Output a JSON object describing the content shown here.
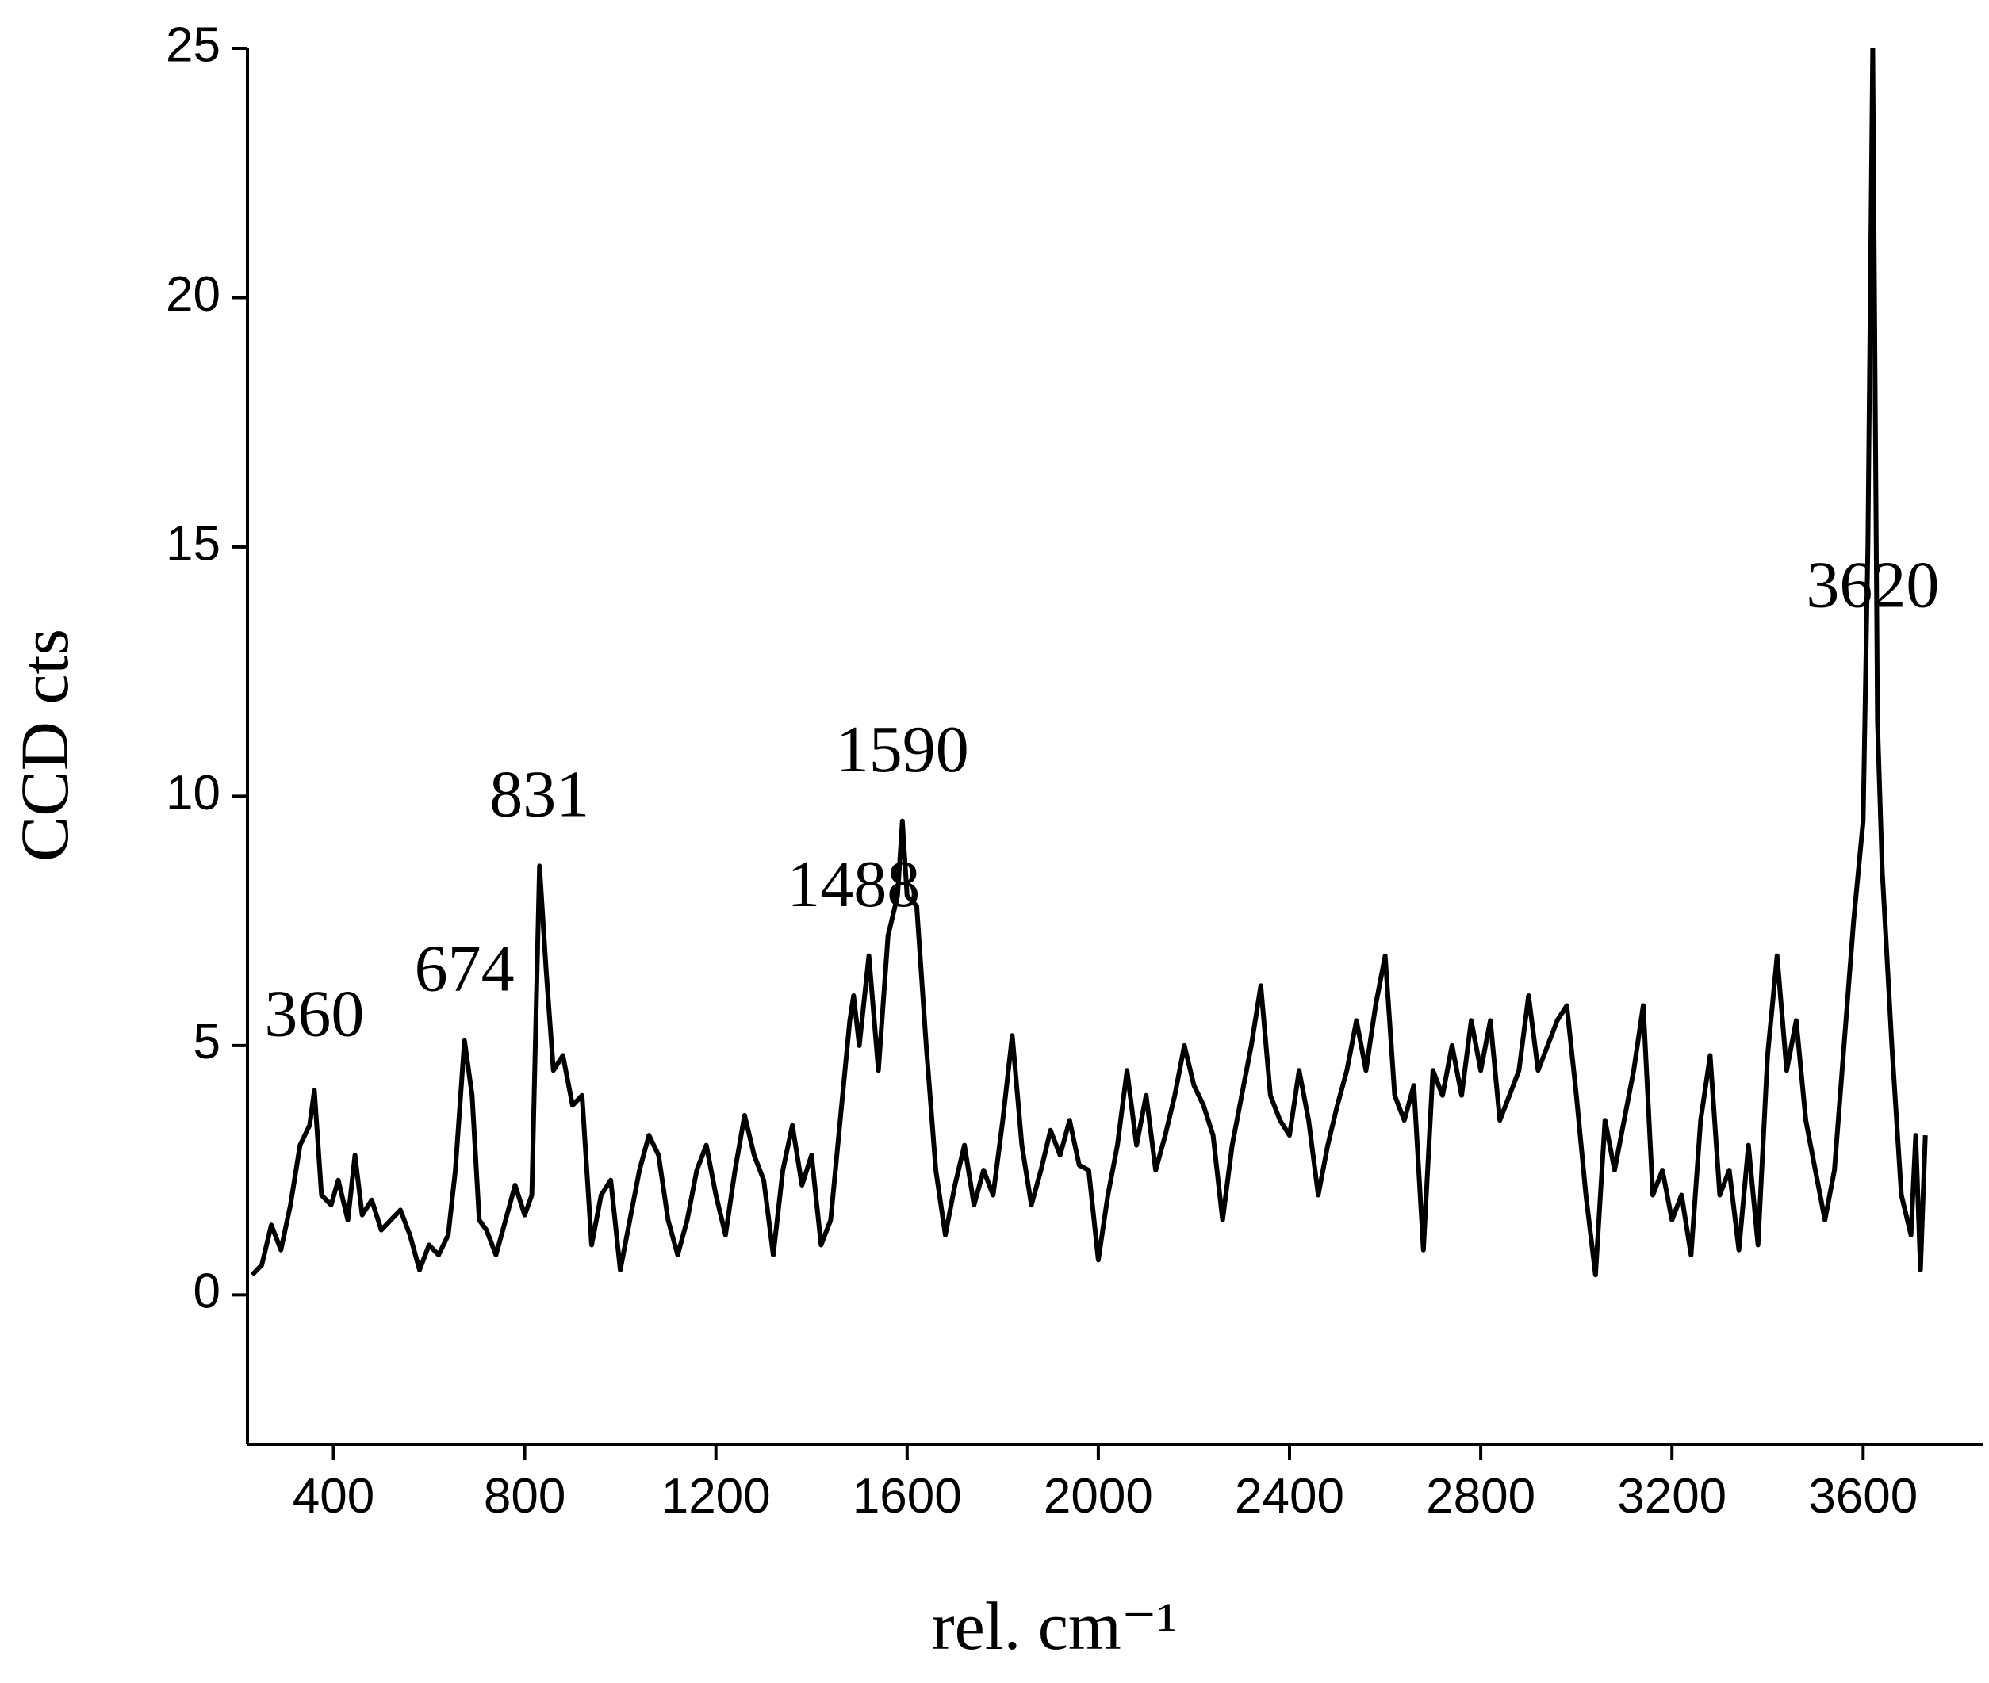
{
  "chart_data": {
    "type": "line",
    "xlabel": "rel. cm⁻¹",
    "ylabel": "CCD cts",
    "xlim": [
      220,
      3850
    ],
    "ylim": [
      -3,
      25
    ],
    "xticks": [
      400,
      800,
      1200,
      1600,
      2000,
      2400,
      2800,
      3200,
      3600
    ],
    "yticks": [
      0,
      5,
      10,
      15,
      20,
      25
    ],
    "color": "#000000",
    "x": [
      230,
      250,
      270,
      290,
      310,
      330,
      350,
      360,
      375,
      395,
      410,
      430,
      445,
      460,
      480,
      500,
      520,
      540,
      560,
      580,
      600,
      620,
      640,
      655,
      674,
      690,
      705,
      720,
      740,
      760,
      780,
      800,
      815,
      831,
      845,
      860,
      880,
      900,
      920,
      940,
      960,
      980,
      1000,
      1020,
      1040,
      1060,
      1080,
      1100,
      1120,
      1140,
      1160,
      1180,
      1200,
      1220,
      1240,
      1260,
      1280,
      1300,
      1320,
      1340,
      1360,
      1380,
      1400,
      1420,
      1440,
      1460,
      1480,
      1488,
      1500,
      1520,
      1540,
      1560,
      1580,
      1590,
      1600,
      1620,
      1640,
      1660,
      1680,
      1700,
      1720,
      1740,
      1760,
      1780,
      1800,
      1820,
      1840,
      1860,
      1880,
      1900,
      1920,
      1940,
      1960,
      1980,
      2000,
      2020,
      2040,
      2060,
      2080,
      2100,
      2120,
      2140,
      2160,
      2180,
      2200,
      2220,
      2240,
      2260,
      2280,
      2300,
      2320,
      2340,
      2360,
      2380,
      2400,
      2420,
      2440,
      2460,
      2480,
      2500,
      2520,
      2540,
      2560,
      2580,
      2600,
      2620,
      2640,
      2660,
      2680,
      2700,
      2720,
      2740,
      2760,
      2780,
      2800,
      2820,
      2840,
      2860,
      2880,
      2900,
      2920,
      2940,
      2960,
      2980,
      3000,
      3020,
      3040,
      3060,
      3080,
      3100,
      3120,
      3140,
      3160,
      3180,
      3200,
      3220,
      3240,
      3260,
      3280,
      3300,
      3320,
      3340,
      3360,
      3380,
      3400,
      3420,
      3440,
      3460,
      3480,
      3500,
      3520,
      3540,
      3560,
      3580,
      3600,
      3610,
      3620,
      3630,
      3640,
      3660,
      3680,
      3700,
      3710,
      3720,
      3730
    ],
    "values": [
      0.4,
      0.6,
      1.4,
      0.9,
      1.8,
      3.0,
      3.4,
      4.1,
      2.0,
      1.8,
      2.3,
      1.5,
      2.8,
      1.6,
      1.9,
      1.3,
      1.5,
      1.7,
      1.2,
      0.5,
      1.0,
      0.8,
      1.2,
      2.5,
      5.1,
      4.0,
      1.5,
      1.3,
      0.8,
      1.5,
      2.2,
      1.6,
      2.0,
      8.6,
      6.5,
      4.5,
      4.8,
      3.8,
      4.0,
      1.0,
      2.0,
      2.3,
      0.5,
      1.5,
      2.5,
      3.2,
      2.8,
      1.5,
      0.8,
      1.5,
      2.5,
      3.0,
      2.0,
      1.2,
      2.5,
      3.6,
      2.8,
      2.3,
      0.8,
      2.5,
      3.4,
      2.2,
      2.8,
      1.0,
      1.5,
      3.5,
      5.5,
      6.0,
      5.0,
      6.8,
      4.5,
      7.2,
      8.0,
      9.5,
      8.0,
      7.8,
      5.0,
      2.5,
      1.2,
      2.2,
      3.0,
      1.8,
      2.5,
      2.0,
      3.5,
      5.2,
      3.0,
      1.8,
      2.5,
      3.3,
      2.8,
      3.5,
      2.6,
      2.5,
      0.7,
      2.0,
      3.0,
      4.5,
      3.0,
      4.0,
      2.5,
      3.2,
      4.0,
      5.0,
      4.2,
      3.8,
      3.2,
      1.5,
      3.0,
      4.0,
      5.0,
      6.2,
      4.0,
      3.5,
      3.2,
      4.5,
      3.5,
      2.0,
      3.0,
      3.8,
      4.5,
      5.5,
      4.5,
      5.8,
      6.8,
      4.0,
      3.5,
      4.2,
      0.9,
      4.5,
      4.0,
      5.0,
      4.0,
      5.5,
      4.5,
      5.5,
      3.5,
      4.0,
      4.5,
      6.0,
      4.5,
      5.0,
      5.5,
      5.8,
      4.0,
      2.0,
      0.4,
      3.5,
      2.5,
      3.5,
      4.5,
      5.8,
      2.0,
      2.5,
      1.5,
      2.0,
      0.8,
      3.5,
      4.8,
      2.0,
      2.5,
      0.9,
      3.0,
      1.0,
      4.8,
      6.8,
      4.5,
      5.5,
      3.5,
      2.5,
      1.5,
      2.5,
      5.0,
      7.5,
      9.5,
      15,
      25,
      11.5,
      8.5,
      5.0,
      2.0,
      1.2,
      3.2,
      0.5,
      3.2
    ],
    "annotations": [
      {
        "text": "360",
        "x": 360,
        "y": 5.2
      },
      {
        "text": "674",
        "x": 674,
        "y": 6.1
      },
      {
        "text": "831",
        "x": 831,
        "y": 9.6
      },
      {
        "text": "1488",
        "x": 1488,
        "y": 7.8
      },
      {
        "text": "1590",
        "x": 1590,
        "y": 10.5
      },
      {
        "text": "3620",
        "x": 3620,
        "y": 13.8
      }
    ]
  }
}
